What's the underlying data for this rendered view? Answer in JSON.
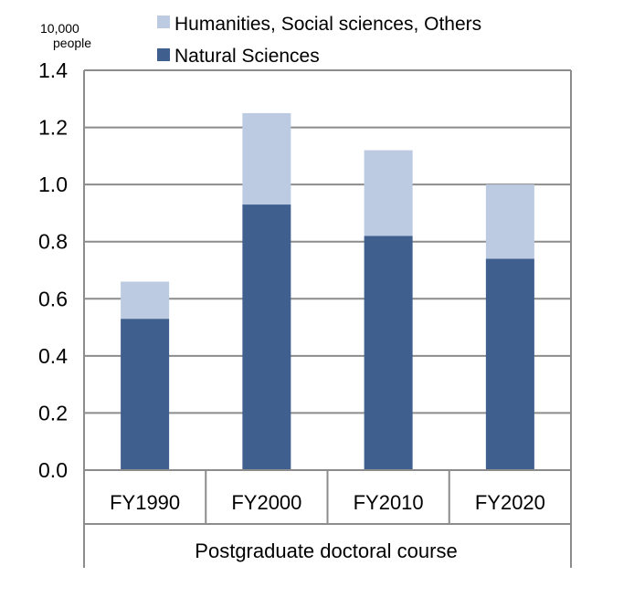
{
  "chart_data": {
    "type": "bar",
    "stacked": true,
    "unit_label": [
      "10,000",
      "people"
    ],
    "group_label": "Postgraduate doctoral course",
    "categories": [
      "FY1990",
      "FY2000",
      "FY2010",
      "FY2020"
    ],
    "series": [
      {
        "name": "Natural Sciences",
        "values": [
          0.53,
          0.93,
          0.82,
          0.74
        ],
        "color": "#3f5f8e"
      },
      {
        "name": "Humanities, Social sciences, Others",
        "values": [
          0.13,
          0.32,
          0.3,
          0.26
        ],
        "color": "#bccbe2"
      }
    ],
    "legend_order": [
      "Humanities, Social sciences, Others",
      "Natural Sciences"
    ],
    "y_ticks": [
      "0.0",
      "0.2",
      "0.4",
      "0.6",
      "0.8",
      "1.0",
      "1.2",
      "1.4"
    ],
    "ylim": [
      0,
      1.4
    ],
    "grid": true,
    "legend_position": "top"
  }
}
